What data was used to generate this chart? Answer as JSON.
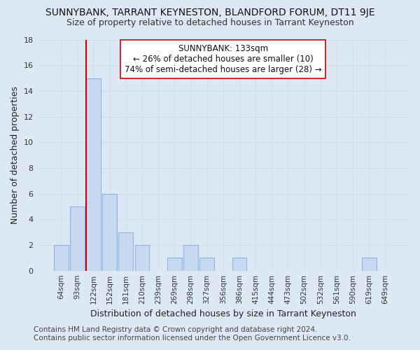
{
  "title": "SUNNYBANK, TARRANT KEYNESTON, BLANDFORD FORUM, DT11 9JE",
  "subtitle": "Size of property relative to detached houses in Tarrant Keyneston",
  "xlabel": "Distribution of detached houses by size in Tarrant Keyneston",
  "ylabel": "Number of detached properties",
  "footer_line1": "Contains HM Land Registry data © Crown copyright and database right 2024.",
  "footer_line2": "Contains public sector information licensed under the Open Government Licence v3.0.",
  "bar_labels": [
    "64sqm",
    "93sqm",
    "122sqm",
    "152sqm",
    "181sqm",
    "210sqm",
    "239sqm",
    "269sqm",
    "298sqm",
    "327sqm",
    "356sqm",
    "386sqm",
    "415sqm",
    "444sqm",
    "473sqm",
    "502sqm",
    "532sqm",
    "561sqm",
    "590sqm",
    "619sqm",
    "649sqm"
  ],
  "bar_values": [
    2,
    5,
    15,
    6,
    3,
    2,
    0,
    1,
    2,
    1,
    0,
    1,
    0,
    0,
    0,
    0,
    0,
    0,
    0,
    1,
    0
  ],
  "bar_color": "#c6d9f0",
  "bar_edge_color": "#8db4e2",
  "subject_line_color": "#cc0000",
  "annotation_line1": "SUNNYBANK: 133sqm",
  "annotation_line2": "← 26% of detached houses are smaller (10)",
  "annotation_line3": "74% of semi-detached houses are larger (28) →",
  "annotation_box_facecolor": "#ffffff",
  "annotation_box_edgecolor": "#cc0000",
  "ylim": [
    0,
    18
  ],
  "yticks": [
    0,
    2,
    4,
    6,
    8,
    10,
    12,
    14,
    16,
    18
  ],
  "grid_color": "#d0dce8",
  "background_color": "#dce9f5",
  "title_fontsize": 10,
  "subtitle_fontsize": 9,
  "axis_label_fontsize": 9,
  "tick_fontsize": 7.5,
  "annotation_fontsize": 8.5,
  "footer_fontsize": 7.5
}
